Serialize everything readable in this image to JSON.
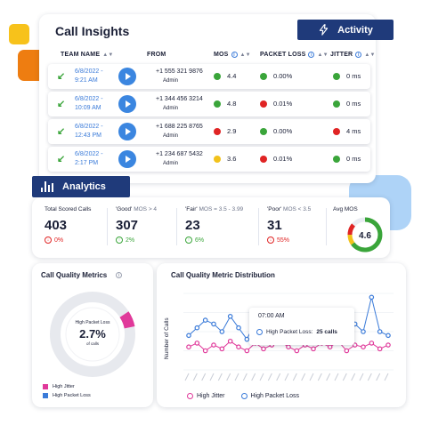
{
  "colors": {
    "navy": "#1f3a7a",
    "blue": "#3b7bd9",
    "pink": "#e0399a",
    "green": "#3aa53a",
    "red": "#e02424",
    "yellow": "#f2c21b"
  },
  "insights": {
    "title": "Call Insights",
    "activity_button": "Activity",
    "columns": {
      "team_name": "TEAM NAME",
      "from": "FROM",
      "mos": "MOS",
      "packet_loss": "PACKET LOSS",
      "jitter": "JITTER"
    },
    "rows": [
      {
        "date": "6/8/2022 -",
        "time": "9:21 AM",
        "from": "+1 555 321 9876",
        "role": "Admin",
        "mos": "4.4",
        "mos_status": "green",
        "packet_loss": "0.00%",
        "pl_status": "green",
        "jitter": "0 ms",
        "jitter_status": "green"
      },
      {
        "date": "6/8/2022 -",
        "time": "10:09 AM",
        "from": "+1 344 456 3214",
        "role": "Admin",
        "mos": "4.8",
        "mos_status": "green",
        "packet_loss": "0.01%",
        "pl_status": "red",
        "jitter": "0 ms",
        "jitter_status": "green"
      },
      {
        "date": "6/8/2022 -",
        "time": "12:43 PM",
        "from": "+1 688 225 8765",
        "role": "Admin",
        "mos": "2.9",
        "mos_status": "red",
        "packet_loss": "0.00%",
        "pl_status": "green",
        "jitter": "4 ms",
        "jitter_status": "red"
      },
      {
        "date": "6/8/2022 -",
        "time": "2:17 PM",
        "from": "+1 234 687 5432",
        "role": "Admin",
        "mos": "3.6",
        "mos_status": "yellow",
        "packet_loss": "0.01%",
        "pl_status": "red",
        "jitter": "0 ms",
        "jitter_status": "green"
      }
    ]
  },
  "analytics": {
    "tab_label": "Analytics",
    "stats": [
      {
        "label": "Total Scored Calls",
        "sub": "",
        "value": "403",
        "change": "0%",
        "change_color": "red"
      },
      {
        "label": "'Good'",
        "sub": "MOS > 4",
        "value": "307",
        "change": "2%",
        "change_color": "green"
      },
      {
        "label": "'Fair'",
        "sub": "MOS = 3.5 - 3.99",
        "value": "23",
        "change": "6%",
        "change_color": "green"
      },
      {
        "label": "'Poor'",
        "sub": "MOS < 3.5",
        "value": "31",
        "change": "55%",
        "change_color": "red"
      }
    ],
    "avg_mos_label": "Avg MOS",
    "avg_mos_value": "4.6"
  },
  "quality_metrics": {
    "title": "Call Quality Metrics",
    "center_label": "High Packet Loss",
    "center_value": "2.7%",
    "center_sub": "of calls",
    "legend": [
      {
        "label": "High Jitter",
        "color": "#e0399a"
      },
      {
        "label": "High Packet Loss",
        "color": "#3b7bd9"
      }
    ]
  },
  "distribution": {
    "title": "Call Quality Metric Distribution",
    "y_label": "Number of Calls",
    "tooltip_time": "07:00 AM",
    "tooltip_series": "High Packet Loss:",
    "tooltip_value": "25 calls",
    "legend": [
      {
        "label": "High Jitter",
        "color": "#e0399a"
      },
      {
        "label": "High Packet Loss",
        "color": "#3b7bd9"
      }
    ]
  },
  "chart_data": {
    "type": "line",
    "title": "Call Quality Metric Distribution",
    "ylabel": "Number of Calls",
    "series": [
      {
        "name": "High Jitter",
        "values": [
          12,
          14,
          10,
          13,
          11,
          15,
          12,
          10,
          14,
          11,
          13,
          15,
          12,
          10,
          13,
          11,
          14,
          12,
          15,
          10,
          13,
          12,
          14,
          11,
          13
        ]
      },
      {
        "name": "High Packet Loss",
        "values": [
          18,
          22,
          26,
          24,
          20,
          28,
          22,
          16,
          25,
          20,
          30,
          18,
          24,
          22,
          26,
          20,
          25,
          22,
          18,
          26,
          24,
          20,
          38,
          20,
          18
        ]
      }
    ]
  }
}
